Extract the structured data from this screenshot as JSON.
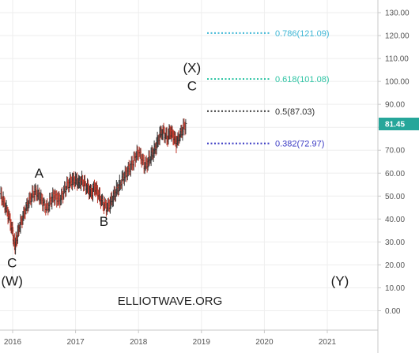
{
  "chart_data": {
    "type": "candlestick",
    "x_ticks": [
      "2016",
      "2017",
      "2018",
      "2019",
      "2020",
      "2021"
    ],
    "y_ticks": [
      "130.00",
      "120.00",
      "110.00",
      "100.00",
      "90.00",
      "80.00",
      "70.00",
      "60.00",
      "50.00",
      "40.00",
      "30.00",
      "20.00",
      "10.00",
      "0.00"
    ],
    "ylim": [
      -4,
      133
    ],
    "xlim": [
      2015.8,
      2022.3
    ],
    "last_price": {
      "value": 81.45,
      "label": "81.45",
      "color": "#26a69a"
    },
    "series": [
      {
        "bar_color_up": "#333333",
        "bar_color_down": "#c0392b",
        "points": [
          [
            2015.8,
            51
          ],
          [
            2015.85,
            48
          ],
          [
            2015.9,
            44
          ],
          [
            2015.95,
            40
          ],
          [
            2016.0,
            34
          ],
          [
            2016.03,
            28
          ],
          [
            2016.06,
            31
          ],
          [
            2016.1,
            36
          ],
          [
            2016.15,
            40
          ],
          [
            2016.2,
            44
          ],
          [
            2016.25,
            47
          ],
          [
            2016.3,
            50
          ],
          [
            2016.35,
            52
          ],
          [
            2016.4,
            51
          ],
          [
            2016.45,
            49
          ],
          [
            2016.5,
            46
          ],
          [
            2016.55,
            45
          ],
          [
            2016.6,
            48
          ],
          [
            2016.65,
            50
          ],
          [
            2016.7,
            49
          ],
          [
            2016.75,
            48
          ],
          [
            2016.8,
            51
          ],
          [
            2016.85,
            54
          ],
          [
            2016.9,
            56
          ],
          [
            2016.95,
            57
          ],
          [
            2017.0,
            57
          ],
          [
            2017.05,
            56
          ],
          [
            2017.1,
            57
          ],
          [
            2017.15,
            55
          ],
          [
            2017.2,
            53
          ],
          [
            2017.25,
            51
          ],
          [
            2017.3,
            54
          ],
          [
            2017.35,
            51
          ],
          [
            2017.4,
            48
          ],
          [
            2017.45,
            46
          ],
          [
            2017.5,
            45
          ],
          [
            2017.55,
            47
          ],
          [
            2017.6,
            50
          ],
          [
            2017.65,
            53
          ],
          [
            2017.7,
            55
          ],
          [
            2017.75,
            58
          ],
          [
            2017.8,
            60
          ],
          [
            2017.85,
            62
          ],
          [
            2017.9,
            64
          ],
          [
            2017.95,
            67
          ],
          [
            2018.0,
            69
          ],
          [
            2018.05,
            66
          ],
          [
            2018.1,
            63
          ],
          [
            2018.15,
            65
          ],
          [
            2018.2,
            68
          ],
          [
            2018.25,
            70
          ],
          [
            2018.3,
            74
          ],
          [
            2018.35,
            78
          ],
          [
            2018.4,
            78
          ],
          [
            2018.45,
            75
          ],
          [
            2018.5,
            78
          ],
          [
            2018.55,
            76
          ],
          [
            2018.6,
            73
          ],
          [
            2018.65,
            76
          ],
          [
            2018.7,
            79
          ],
          [
            2018.75,
            81.45
          ]
        ]
      }
    ],
    "fib_levels": [
      {
        "label": "0.786(121.09)",
        "value": 121.09,
        "color": "#3fb7d6"
      },
      {
        "label": "0.618(101.08)",
        "value": 101.08,
        "color": "#2ec4a4"
      },
      {
        "label": "0.5(87.03)",
        "value": 87.03,
        "color": "#333333"
      },
      {
        "label": "0.382(72.97)",
        "value": 72.97,
        "color": "#3b3bc4"
      }
    ],
    "wave_labels": [
      {
        "text": "C",
        "x": 2015.99,
        "y": 19,
        "color": "#b22222"
      },
      {
        "text": "(W)",
        "x": 2015.99,
        "y": 11,
        "color": "#1a1a1a"
      },
      {
        "text": "A",
        "x": 2016.42,
        "y": 58,
        "color": "#1a1a1a"
      },
      {
        "text": "B",
        "x": 2017.45,
        "y": 37,
        "color": "#1a1a1a"
      },
      {
        "text": "(X)",
        "x": 2018.85,
        "y": 104,
        "color": "#1a1a1a"
      },
      {
        "text": "C",
        "x": 2018.85,
        "y": 96,
        "color": "#1a1a1a"
      },
      {
        "text": "(Y)",
        "x": 2021.2,
        "y": 11,
        "color": "#1a1a1a"
      }
    ],
    "watermark": "ELLIOTWAVE.ORG",
    "grid": true
  }
}
